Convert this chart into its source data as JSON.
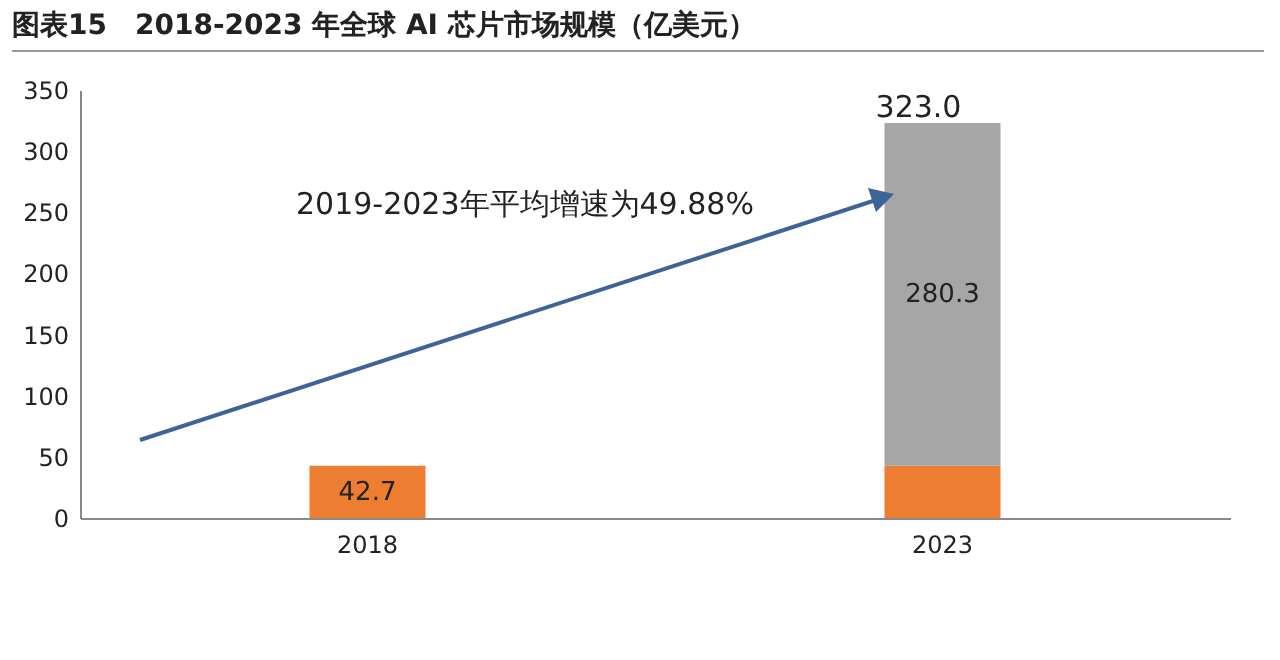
{
  "chart_data": {
    "type": "bar",
    "title": "图表15　2018-2023 年全球 AI 芯片市场规模（亿美元）",
    "categories": [
      "2018",
      "2023"
    ],
    "series": [
      {
        "color": "#ed7d31",
        "values": [
          42.7,
          42.7
        ],
        "value_labels": [
          "42.7",
          null
        ]
      },
      {
        "color": "#a6a6a6",
        "values": [
          null,
          280.3
        ],
        "value_labels": [
          null,
          "280.3"
        ]
      }
    ],
    "stacked": true,
    "totals": [
      null,
      "323.0"
    ],
    "ylim": [
      0,
      350
    ],
    "yticks": [
      0,
      50,
      100,
      150,
      200,
      250,
      300,
      350
    ],
    "grid": false,
    "legend": false,
    "annotations": [
      "2019-2023年平均增速为49.88%"
    ]
  }
}
